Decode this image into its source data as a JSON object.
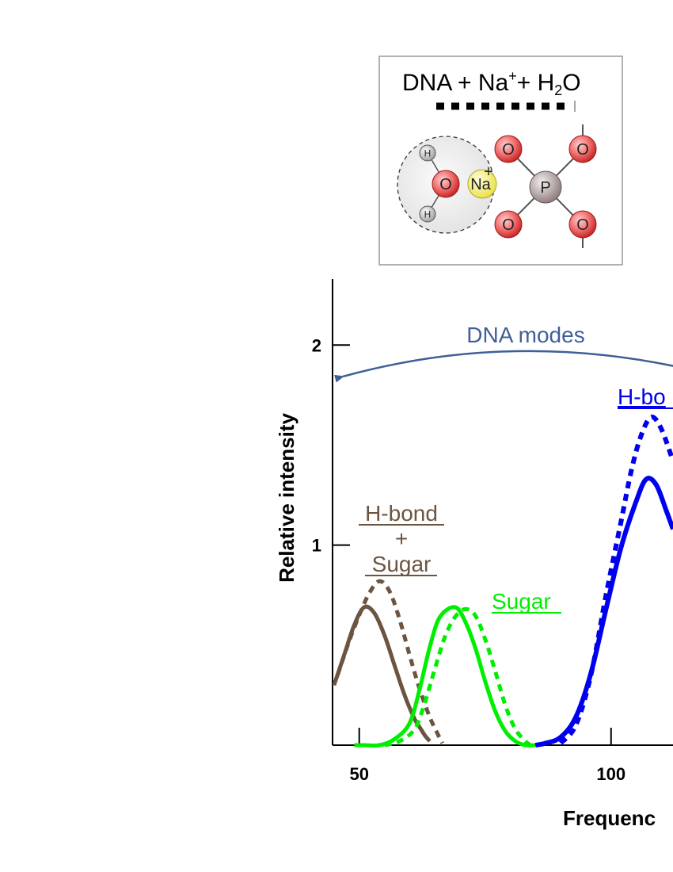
{
  "inset": {
    "title_main": "DNA + Na",
    "title_sup": "+",
    "title_plus": "+ H",
    "title_sub": "2",
    "title_end": "O",
    "atoms": {
      "oxygen": "O",
      "hydrogen": "H",
      "sodium": "Na",
      "sodium_charge": "+",
      "phosphorus": "P"
    }
  },
  "annotations": {
    "dna_modes": "DNA modes",
    "hbond_blue": "H-bo",
    "hbond_sugar_line1": "H-bond",
    "hbond_sugar_line2": "+",
    "hbond_sugar_line3": "Sugar",
    "sugar": "Sugar"
  },
  "chart_data": {
    "type": "line",
    "xlabel": "Frequenc",
    "ylabel": "Relative intensity",
    "xlim": [
      44.7,
      112.3
    ],
    "ylim": [
      0,
      2.33
    ],
    "xticks": [
      50,
      100
    ],
    "yticks": [
      1,
      2
    ],
    "xtick_labels": [
      "50",
      "100"
    ],
    "ytick_labels": [
      "1",
      "2"
    ],
    "colors": {
      "brown": "#6b5440",
      "green": "#00ee00",
      "blue": "#0000ee",
      "arrow": "#3f5f99"
    },
    "series": [
      {
        "color": "brown",
        "style": "solid",
        "points": [
          [
            45,
            0.3
          ],
          [
            47,
            0.45
          ],
          [
            49,
            0.6
          ],
          [
            51,
            0.69
          ],
          [
            53,
            0.66
          ],
          [
            55,
            0.55
          ],
          [
            57,
            0.4
          ],
          [
            59,
            0.25
          ],
          [
            61,
            0.13
          ],
          [
            62,
            0.09
          ],
          [
            63,
            0.05
          ],
          [
            64,
            0.02
          ]
        ]
      },
      {
        "color": "brown",
        "style": "dashed",
        "points": [
          [
            45.7,
            0.35
          ],
          [
            48,
            0.52
          ],
          [
            50,
            0.65
          ],
          [
            52,
            0.76
          ],
          [
            54,
            0.82
          ],
          [
            56,
            0.77
          ],
          [
            58,
            0.63
          ],
          [
            60,
            0.45
          ],
          [
            62,
            0.28
          ],
          [
            64,
            0.14
          ],
          [
            65.5,
            0.06
          ],
          [
            66.5,
            0.01
          ]
        ]
      },
      {
        "color": "green",
        "style": "solid",
        "points": [
          [
            49,
            0.0
          ],
          [
            51,
            0.0
          ],
          [
            54,
            0.0
          ],
          [
            57,
            0.03
          ],
          [
            60,
            0.11
          ],
          [
            62,
            0.28
          ],
          [
            64,
            0.49
          ],
          [
            66,
            0.64
          ],
          [
            69,
            0.69
          ],
          [
            71,
            0.62
          ],
          [
            73,
            0.49
          ],
          [
            75,
            0.32
          ],
          [
            77,
            0.17
          ],
          [
            79,
            0.07
          ],
          [
            81,
            0.02
          ],
          [
            83,
            0.0
          ],
          [
            85,
            0.0
          ]
        ]
      },
      {
        "color": "green",
        "style": "dashed",
        "points": [
          [
            55,
            0.0
          ],
          [
            58,
            0.02
          ],
          [
            61,
            0.08
          ],
          [
            63,
            0.21
          ],
          [
            65,
            0.38
          ],
          [
            67,
            0.54
          ],
          [
            69,
            0.64
          ],
          [
            71,
            0.68
          ],
          [
            73,
            0.65
          ],
          [
            75,
            0.53
          ],
          [
            77,
            0.37
          ],
          [
            79,
            0.2
          ],
          [
            81,
            0.08
          ],
          [
            83,
            0.02
          ],
          [
            84,
            0.0
          ]
        ]
      },
      {
        "color": "blue",
        "style": "solid",
        "points": [
          [
            85,
            0.0
          ],
          [
            87,
            0.01
          ],
          [
            90,
            0.04
          ],
          [
            93,
            0.14
          ],
          [
            96,
            0.36
          ],
          [
            99,
            0.68
          ],
          [
            102,
            0.99
          ],
          [
            105,
            1.22
          ],
          [
            107,
            1.33
          ],
          [
            109,
            1.3
          ],
          [
            111,
            1.17
          ],
          [
            112.3,
            1.08
          ]
        ]
      },
      {
        "color": "blue",
        "style": "dashed",
        "points": [
          [
            90,
            0.01
          ],
          [
            93,
            0.1
          ],
          [
            96,
            0.35
          ],
          [
            99,
            0.75
          ],
          [
            102,
            1.12
          ],
          [
            104,
            1.37
          ],
          [
            106,
            1.55
          ],
          [
            108,
            1.64
          ],
          [
            110,
            1.58
          ],
          [
            112.3,
            1.42
          ]
        ]
      }
    ]
  }
}
